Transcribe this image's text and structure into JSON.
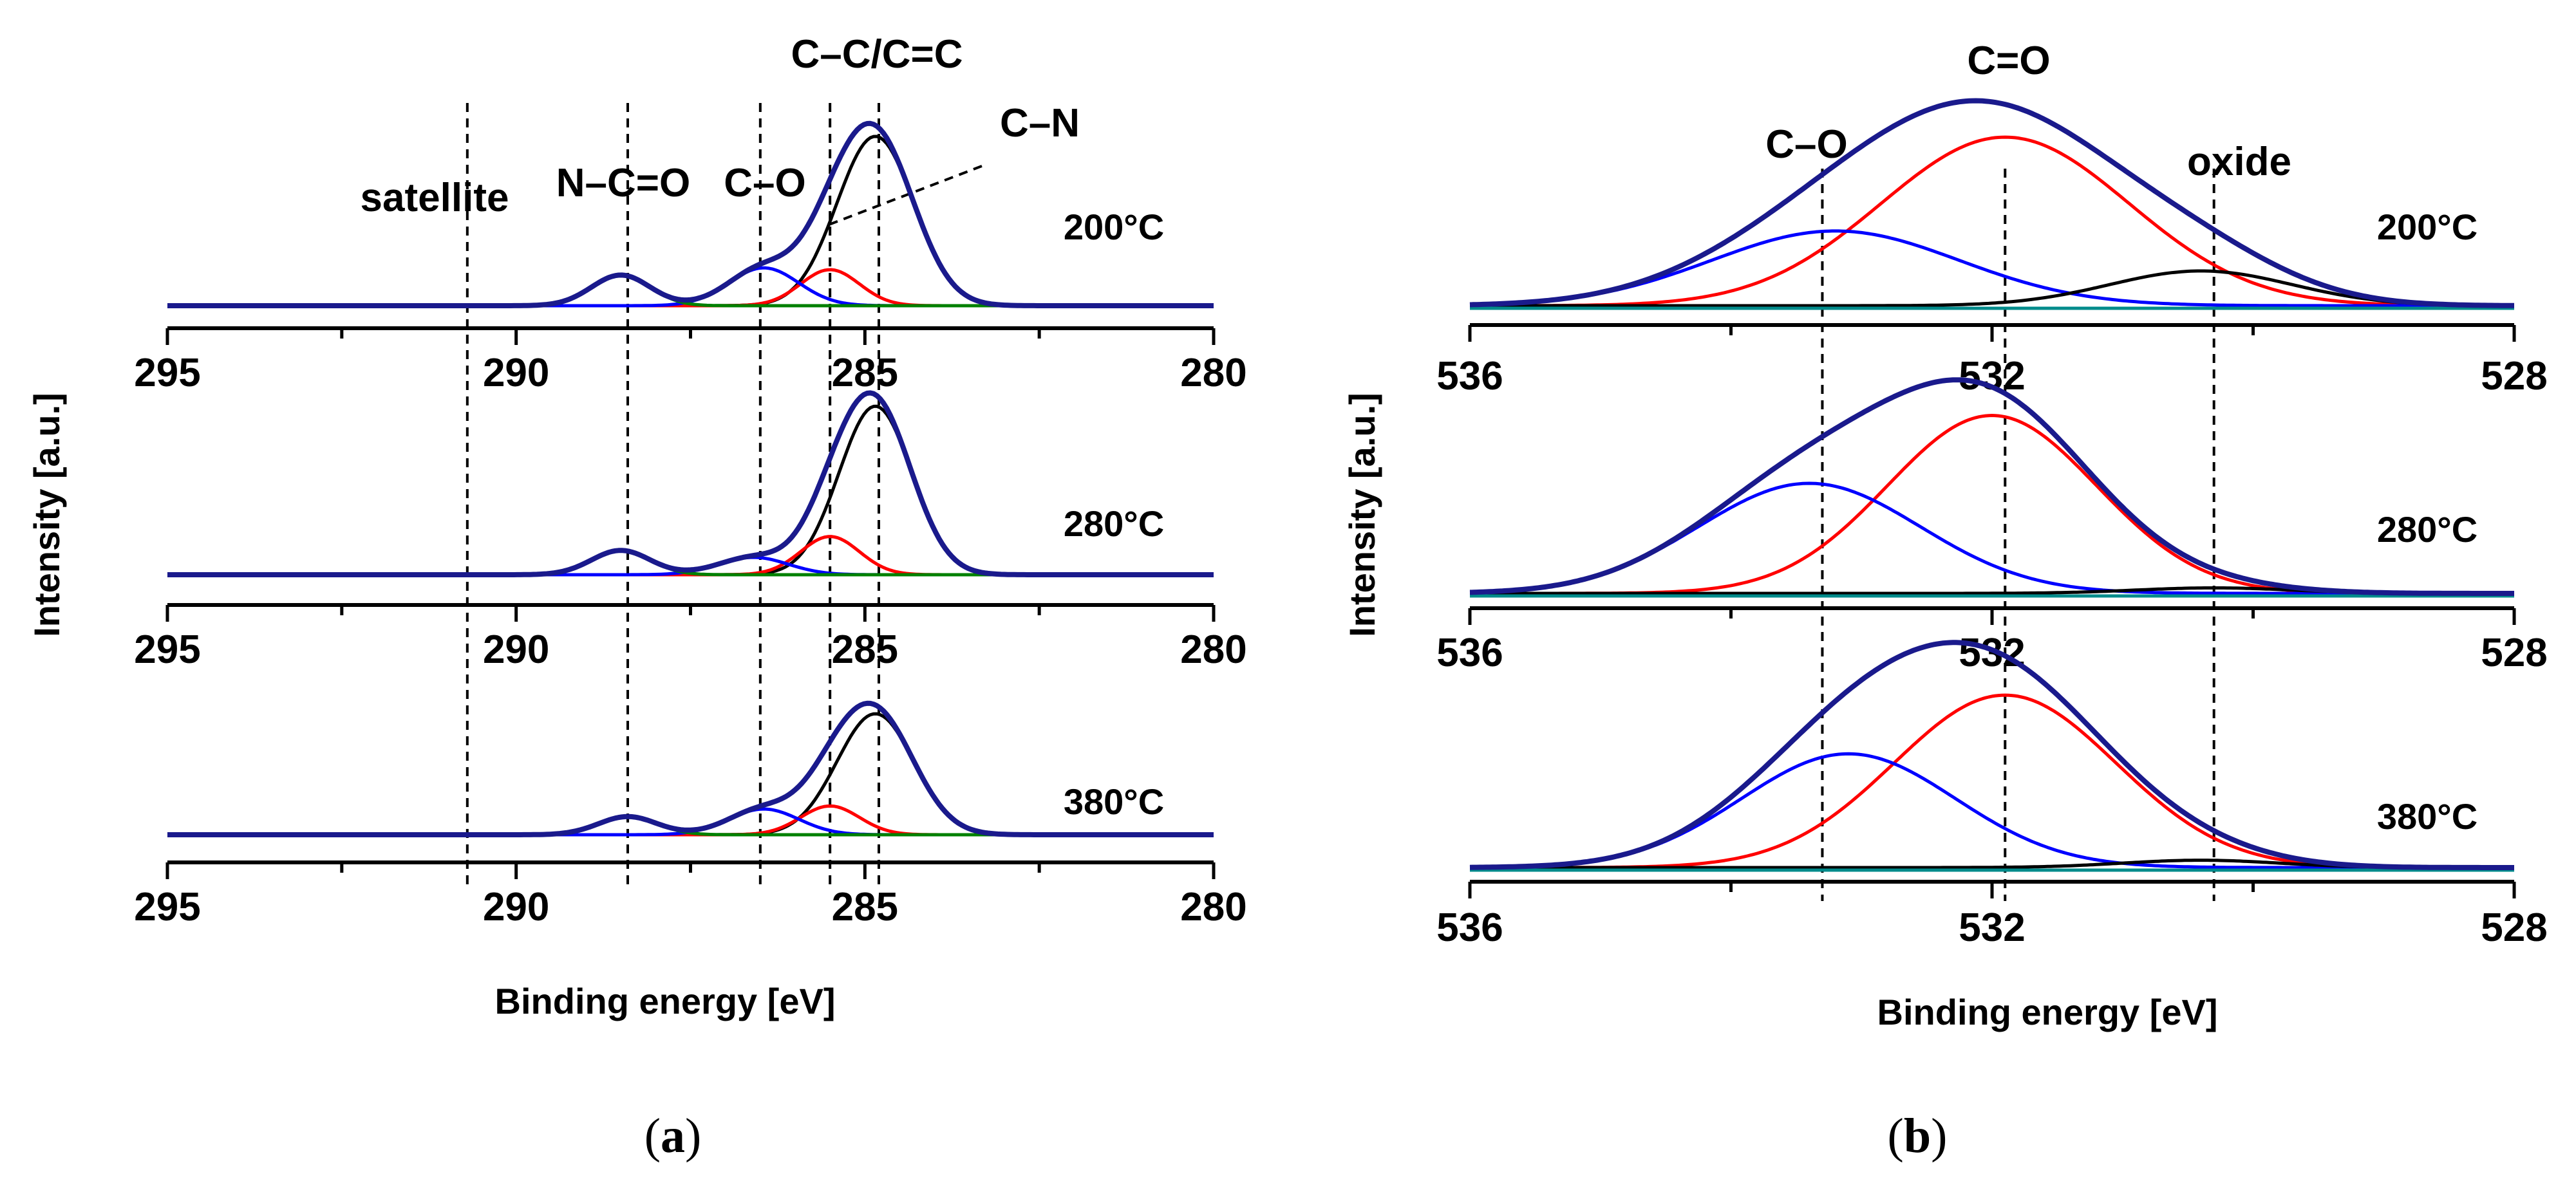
{
  "chart_data": [
    {
      "panel": "a",
      "type": "line",
      "title": "",
      "subfigure_label": {
        "open": "(",
        "letter": "a",
        "close": ")"
      },
      "xlabel": "Binding energy [eV]",
      "ylabel": "Intensity [a.u.]",
      "xlim": [
        295,
        280
      ],
      "x_reversed": true,
      "x_ticks": [
        295,
        290,
        285,
        280
      ],
      "x_tick_labels": [
        "295",
        "290",
        "285",
        "280"
      ],
      "reference_lines": [
        {
          "name": "satellite",
          "x": 290.7
        },
        {
          "name": "N–C=O",
          "x": 288.4
        },
        {
          "name": "C–O",
          "x": 286.5
        },
        {
          "name": "C–N",
          "x": 285.5
        },
        {
          "name": "C–C/C=C",
          "x": 284.8
        }
      ],
      "annotations": [
        "satellite",
        "N–C=O",
        "C–O",
        "C–C/C=C",
        "C–N"
      ],
      "spectra": [
        {
          "temperature": "200°C",
          "components": [
            {
              "name": "envelope",
              "color": "#1a1a8c",
              "peaks": [
                {
                  "center": 288.5,
                  "height": 0.17,
                  "sigma": 0.42
                },
                {
                  "center": 286.45,
                  "height": 0.21,
                  "sigma": 0.5
                },
                {
                  "center": 285.5,
                  "height": 0.2,
                  "sigma": 0.42
                },
                {
                  "center": 284.85,
                  "height": 0.94,
                  "sigma": 0.55
                }
              ]
            },
            {
              "name": "C–C/C=C fit",
              "color": "#000000",
              "peaks": [
                {
                  "center": 284.85,
                  "height": 0.94,
                  "sigma": 0.55
                }
              ]
            },
            {
              "name": "C–N fit",
              "color": "#ff0000",
              "peaks": [
                {
                  "center": 285.5,
                  "height": 0.2,
                  "sigma": 0.42
                }
              ]
            },
            {
              "name": "C–O fit",
              "color": "#0000ff",
              "peaks": [
                {
                  "center": 286.45,
                  "height": 0.21,
                  "sigma": 0.5
                }
              ]
            },
            {
              "name": "N–C=O fit",
              "color": "#008000",
              "peaks": [
                {
                  "center": 288.5,
                  "height": 0.17,
                  "sigma": 0.42
                }
              ]
            }
          ]
        },
        {
          "temperature": "280°C",
          "components": [
            {
              "name": "envelope",
              "color": "#1a1a8c",
              "peaks": [
                {
                  "center": 288.5,
                  "height": 0.14,
                  "sigma": 0.42
                },
                {
                  "center": 286.6,
                  "height": 0.1,
                  "sigma": 0.5
                },
                {
                  "center": 285.5,
                  "height": 0.22,
                  "sigma": 0.42
                },
                {
                  "center": 284.85,
                  "height": 0.97,
                  "sigma": 0.52
                }
              ]
            },
            {
              "name": "C–C/C=C fit",
              "color": "#000000",
              "peaks": [
                {
                  "center": 284.85,
                  "height": 0.97,
                  "sigma": 0.52
                }
              ]
            },
            {
              "name": "C–N fit",
              "color": "#ff0000",
              "peaks": [
                {
                  "center": 285.5,
                  "height": 0.22,
                  "sigma": 0.42
                }
              ]
            },
            {
              "name": "C–O fit",
              "color": "#0000ff",
              "peaks": [
                {
                  "center": 286.6,
                  "height": 0.1,
                  "sigma": 0.5
                }
              ]
            },
            {
              "name": "N–C=O fit",
              "color": "#008000",
              "peaks": [
                {
                  "center": 288.5,
                  "height": 0.14,
                  "sigma": 0.42
                }
              ]
            }
          ]
        },
        {
          "temperature": "380°C",
          "components": [
            {
              "name": "envelope",
              "color": "#1a1a8c",
              "peaks": [
                {
                  "center": 288.4,
                  "height": 0.12,
                  "sigma": 0.42
                },
                {
                  "center": 286.45,
                  "height": 0.17,
                  "sigma": 0.5
                },
                {
                  "center": 285.5,
                  "height": 0.19,
                  "sigma": 0.42
                },
                {
                  "center": 284.85,
                  "height": 0.8,
                  "sigma": 0.55
                }
              ]
            },
            {
              "name": "C–C/C=C fit",
              "color": "#000000",
              "peaks": [
                {
                  "center": 284.85,
                  "height": 0.8,
                  "sigma": 0.55
                }
              ]
            },
            {
              "name": "C–N fit",
              "color": "#ff0000",
              "peaks": [
                {
                  "center": 285.5,
                  "height": 0.19,
                  "sigma": 0.42
                }
              ]
            },
            {
              "name": "C–O fit",
              "color": "#0000ff",
              "peaks": [
                {
                  "center": 286.45,
                  "height": 0.17,
                  "sigma": 0.5
                }
              ]
            },
            {
              "name": "N–C=O fit",
              "color": "#008000",
              "peaks": [
                {
                  "center": 288.4,
                  "height": 0.12,
                  "sigma": 0.42
                }
              ]
            }
          ]
        }
      ]
    },
    {
      "panel": "b",
      "type": "line",
      "title": "",
      "subfigure_label": {
        "open": "(",
        "letter": "b",
        "close": ")"
      },
      "xlabel": "Binding energy [eV]",
      "ylabel": "Intensity [a.u.]",
      "xlim": [
        536,
        528
      ],
      "x_reversed": true,
      "x_ticks": [
        536,
        532,
        528
      ],
      "x_tick_labels": [
        "536",
        "532",
        "528"
      ],
      "reference_lines": [
        {
          "name": "C–O",
          "x": 533.3
        },
        {
          "name": "C=O",
          "x": 531.9
        },
        {
          "name": "oxide",
          "x": 530.3
        }
      ],
      "annotations": [
        "C–O",
        "C=O",
        "oxide"
      ],
      "spectra": [
        {
          "temperature": "200°C",
          "components": [
            {
              "name": "envelope",
              "color": "#1a1a8c",
              "peaks": [
                {
                  "center": 533.2,
                  "height": 0.43,
                  "sigma": 0.95
                },
                {
                  "center": 531.9,
                  "height": 0.97,
                  "sigma": 0.95
                },
                {
                  "center": 530.4,
                  "height": 0.2,
                  "sigma": 0.7
                }
              ]
            },
            {
              "name": "C=O fit",
              "color": "#ff0000",
              "peaks": [
                {
                  "center": 531.9,
                  "height": 0.97,
                  "sigma": 0.95
                }
              ]
            },
            {
              "name": "C–O fit",
              "color": "#0000ff",
              "peaks": [
                {
                  "center": 533.2,
                  "height": 0.43,
                  "sigma": 0.95
                }
              ]
            },
            {
              "name": "oxide fit",
              "color": "#000000",
              "peaks": [
                {
                  "center": 530.4,
                  "height": 0.2,
                  "sigma": 0.7
                }
              ]
            },
            {
              "name": "background",
              "color": "#008b8b",
              "peaks": []
            }
          ]
        },
        {
          "temperature": "280°C",
          "components": [
            {
              "name": "envelope",
              "color": "#1a1a8c",
              "peaks": [
                {
                  "center": 533.4,
                  "height": 0.6,
                  "sigma": 0.85
                },
                {
                  "center": 532.0,
                  "height": 0.97,
                  "sigma": 0.8
                },
                {
                  "center": 530.3,
                  "height": 0.03,
                  "sigma": 0.6
                }
              ]
            },
            {
              "name": "C=O fit",
              "color": "#ff0000",
              "peaks": [
                {
                  "center": 532.0,
                  "height": 0.97,
                  "sigma": 0.8
                }
              ]
            },
            {
              "name": "C–O fit",
              "color": "#0000ff",
              "peaks": [
                {
                  "center": 533.4,
                  "height": 0.6,
                  "sigma": 0.85
                }
              ]
            },
            {
              "name": "oxide fit",
              "color": "#000000",
              "peaks": [
                {
                  "center": 530.3,
                  "height": 0.03,
                  "sigma": 0.6
                }
              ]
            },
            {
              "name": "background",
              "color": "#008b8b",
              "peaks": []
            }
          ]
        },
        {
          "temperature": "380°C",
          "components": [
            {
              "name": "envelope",
              "color": "#1a1a8c",
              "peaks": [
                {
                  "center": 533.1,
                  "height": 0.62,
                  "sigma": 0.82
                },
                {
                  "center": 531.9,
                  "height": 0.94,
                  "sigma": 0.85
                },
                {
                  "center": 530.4,
                  "height": 0.04,
                  "sigma": 0.6
                }
              ]
            },
            {
              "name": "C=O fit",
              "color": "#ff0000",
              "peaks": [
                {
                  "center": 531.9,
                  "height": 0.94,
                  "sigma": 0.85
                }
              ]
            },
            {
              "name": "C–O fit",
              "color": "#0000ff",
              "peaks": [
                {
                  "center": 533.1,
                  "height": 0.62,
                  "sigma": 0.82
                }
              ]
            },
            {
              "name": "oxide fit",
              "color": "#000000",
              "peaks": [
                {
                  "center": 530.4,
                  "height": 0.04,
                  "sigma": 0.6
                }
              ]
            },
            {
              "name": "background",
              "color": "#008b8b",
              "peaks": []
            }
          ]
        }
      ]
    }
  ]
}
